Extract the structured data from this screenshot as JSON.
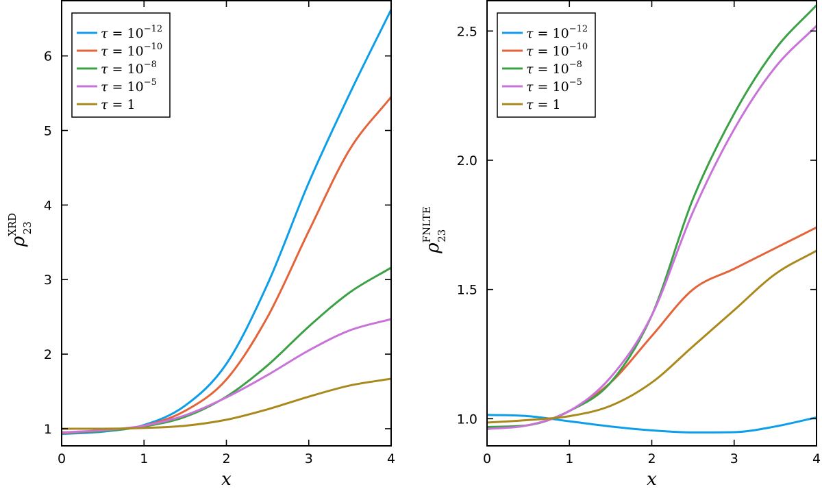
{
  "chart_data": [
    {
      "type": "line",
      "id": "left",
      "xlabel": "x",
      "ylabel": {
        "base": "ρ",
        "sub": "23",
        "sup": "XRD"
      },
      "xlim": [
        0,
        4
      ],
      "ylim": [
        0.77,
        6.75
      ],
      "xticks": [
        0,
        1,
        2,
        3,
        4
      ],
      "xtick_labels": [
        "0",
        "1",
        "2",
        "3",
        "4"
      ],
      "yticks": [
        1,
        2,
        3,
        4,
        5,
        6
      ],
      "ytick_labels": [
        "1",
        "2",
        "3",
        "4",
        "5",
        "6"
      ],
      "legend_position": "top-left",
      "series": [
        {
          "name": "τ = 10^{−12}",
          "legend": {
            "base": "10",
            "exp": "−12"
          },
          "color": "#0c9ee8",
          "points": [
            [
              0,
              0.93
            ],
            [
              0.5,
              0.96
            ],
            [
              1,
              1.05
            ],
            [
              1.5,
              1.31
            ],
            [
              2,
              1.87
            ],
            [
              2.5,
              2.94
            ],
            [
              3,
              4.3
            ],
            [
              3.5,
              5.5
            ],
            [
              4,
              6.62
            ]
          ]
        },
        {
          "name": "τ = 10^{−10}",
          "legend": {
            "base": "10",
            "exp": "−10"
          },
          "color": "#e3643a",
          "points": [
            [
              0,
              0.94
            ],
            [
              0.5,
              0.97
            ],
            [
              1,
              1.04
            ],
            [
              1.5,
              1.24
            ],
            [
              2,
              1.66
            ],
            [
              2.5,
              2.5
            ],
            [
              3,
              3.65
            ],
            [
              3.5,
              4.75
            ],
            [
              4,
              5.45
            ]
          ]
        },
        {
          "name": "τ = 10^{−8}",
          "legend": {
            "base": "10",
            "exp": "−8"
          },
          "color": "#3ca046",
          "points": [
            [
              0,
              0.95
            ],
            [
              0.5,
              0.97
            ],
            [
              1,
              1.03
            ],
            [
              1.5,
              1.16
            ],
            [
              2,
              1.43
            ],
            [
              2.5,
              1.85
            ],
            [
              3,
              2.37
            ],
            [
              3.5,
              2.83
            ],
            [
              4,
              3.16
            ]
          ]
        },
        {
          "name": "τ = 10^{−5}",
          "legend": {
            "base": "10",
            "exp": "−5"
          },
          "color": "#c873d8",
          "points": [
            [
              0,
              0.95
            ],
            [
              0.5,
              0.98
            ],
            [
              1,
              1.04
            ],
            [
              1.5,
              1.18
            ],
            [
              2,
              1.42
            ],
            [
              2.5,
              1.72
            ],
            [
              3,
              2.05
            ],
            [
              3.5,
              2.32
            ],
            [
              4,
              2.47
            ]
          ]
        },
        {
          "name": "τ = 1",
          "legend": {
            "base": "1",
            "exp": ""
          },
          "color": "#a9891c",
          "points": [
            [
              0,
              1.0
            ],
            [
              0.5,
              1.0
            ],
            [
              1,
              1.01
            ],
            [
              1.5,
              1.04
            ],
            [
              2,
              1.12
            ],
            [
              2.5,
              1.26
            ],
            [
              3,
              1.43
            ],
            [
              3.5,
              1.58
            ],
            [
              4,
              1.67
            ]
          ]
        }
      ]
    },
    {
      "type": "line",
      "id": "right",
      "xlabel": "x",
      "ylabel": {
        "base": "ρ",
        "sub": "23",
        "sup": "FNLTE"
      },
      "xlim": [
        0,
        4
      ],
      "ylim": [
        0.895,
        2.62
      ],
      "xticks": [
        0,
        1,
        2,
        3,
        4
      ],
      "xtick_labels": [
        "0",
        "1",
        "2",
        "3",
        "4"
      ],
      "yticks": [
        1.0,
        1.5,
        2.0,
        2.5
      ],
      "ytick_labels": [
        "1.0",
        "1.5",
        "2.0",
        "2.5"
      ],
      "legend_position": "top-left",
      "series": [
        {
          "name": "τ = 10^{−12}",
          "legend": {
            "base": "10",
            "exp": "−12"
          },
          "color": "#0c9ee8",
          "points": [
            [
              0,
              1.015
            ],
            [
              0.5,
              1.01
            ],
            [
              1,
              0.99
            ],
            [
              1.5,
              0.97
            ],
            [
              2,
              0.955
            ],
            [
              2.5,
              0.947
            ],
            [
              3,
              0.948
            ],
            [
              3.5,
              0.97
            ],
            [
              4,
              1.005
            ]
          ]
        },
        {
          "name": "τ = 10^{−10}",
          "legend": {
            "base": "10",
            "exp": "−10"
          },
          "color": "#e3643a",
          "points": [
            [
              0,
              0.965
            ],
            [
              0.5,
              0.975
            ],
            [
              1,
              1.03
            ],
            [
              1.5,
              1.14
            ],
            [
              2,
              1.32
            ],
            [
              2.5,
              1.5
            ],
            [
              3,
              1.58
            ],
            [
              3.5,
              1.66
            ],
            [
              4,
              1.74
            ]
          ]
        },
        {
          "name": "τ = 10^{−8}",
          "legend": {
            "base": "10",
            "exp": "−8"
          },
          "color": "#3ca046",
          "points": [
            [
              0,
              0.968
            ],
            [
              0.5,
              0.975
            ],
            [
              1,
              1.03
            ],
            [
              1.5,
              1.14
            ],
            [
              2,
              1.4
            ],
            [
              2.5,
              1.85
            ],
            [
              3,
              2.18
            ],
            [
              3.5,
              2.43
            ],
            [
              4,
              2.6
            ]
          ]
        },
        {
          "name": "τ = 10^{−5}",
          "legend": {
            "base": "10",
            "exp": "−5"
          },
          "color": "#c873d8",
          "points": [
            [
              0,
              0.96
            ],
            [
              0.5,
              0.975
            ],
            [
              1,
              1.03
            ],
            [
              1.5,
              1.16
            ],
            [
              2,
              1.4
            ],
            [
              2.5,
              1.8
            ],
            [
              3,
              2.12
            ],
            [
              3.5,
              2.36
            ],
            [
              4,
              2.52
            ]
          ]
        },
        {
          "name": "τ = 1",
          "legend": {
            "base": "1",
            "exp": ""
          },
          "color": "#a9891c",
          "points": [
            [
              0,
              0.985
            ],
            [
              0.5,
              0.995
            ],
            [
              1,
              1.01
            ],
            [
              1.5,
              1.05
            ],
            [
              2,
              1.14
            ],
            [
              2.5,
              1.28
            ],
            [
              3,
              1.42
            ],
            [
              3.5,
              1.56
            ],
            [
              4,
              1.65
            ]
          ]
        }
      ]
    }
  ]
}
